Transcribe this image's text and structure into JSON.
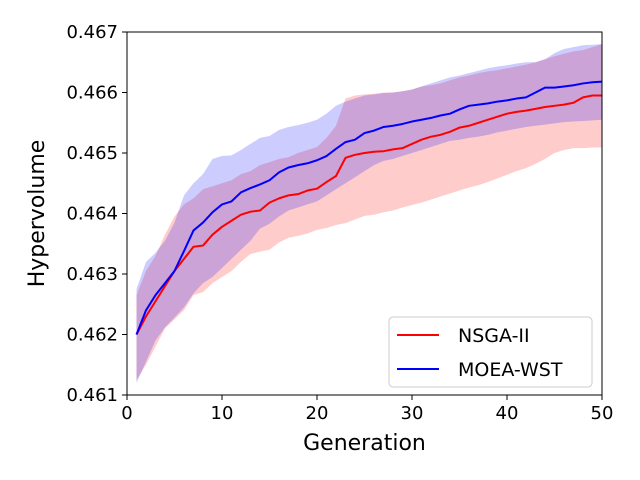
{
  "chart_data": {
    "type": "line",
    "title": "",
    "xlabel": "Generation",
    "ylabel": "Hypervolume",
    "xlim": [
      0,
      50
    ],
    "ylim": [
      0.461,
      0.467
    ],
    "xticks": [
      0,
      10,
      20,
      30,
      40,
      50
    ],
    "xtick_labels": [
      "0",
      "10",
      "20",
      "30",
      "40",
      "50"
    ],
    "yticks": [
      0.461,
      0.462,
      0.463,
      0.464,
      0.465,
      0.466,
      0.467
    ],
    "ytick_labels": [
      "0.461",
      "0.462",
      "0.463",
      "0.464",
      "0.465",
      "0.466",
      "0.467"
    ],
    "grid": false,
    "legend_position": "lower-right",
    "x": [
      1,
      2,
      3,
      4,
      5,
      6,
      7,
      8,
      9,
      10,
      11,
      12,
      13,
      14,
      15,
      16,
      17,
      18,
      19,
      20,
      21,
      22,
      23,
      24,
      25,
      26,
      27,
      28,
      29,
      30,
      31,
      32,
      33,
      34,
      35,
      36,
      37,
      38,
      39,
      40,
      41,
      42,
      43,
      44,
      45,
      46,
      47,
      48,
      49,
      50
    ],
    "series": [
      {
        "name": "NSGA-II",
        "color": "#ff0000",
        "band_color": "#ff0000",
        "mean": [
          0.462,
          0.4623,
          0.46255,
          0.4628,
          0.46305,
          0.46325,
          0.46345,
          0.46347,
          0.46365,
          0.46378,
          0.46388,
          0.46398,
          0.46403,
          0.46405,
          0.46418,
          0.46425,
          0.4643,
          0.46432,
          0.46438,
          0.46441,
          0.46452,
          0.46462,
          0.46492,
          0.46497,
          0.465,
          0.46502,
          0.46503,
          0.46506,
          0.46508,
          0.46515,
          0.46522,
          0.46527,
          0.4653,
          0.46535,
          0.46542,
          0.46545,
          0.4655,
          0.46555,
          0.4656,
          0.46565,
          0.46568,
          0.4657,
          0.46573,
          0.46576,
          0.46578,
          0.4658,
          0.46583,
          0.46592,
          0.46595,
          0.46595
        ],
        "lower": [
          0.46125,
          0.4615,
          0.4618,
          0.4621,
          0.46225,
          0.4624,
          0.46265,
          0.4627,
          0.46285,
          0.46295,
          0.46305,
          0.4632,
          0.46333,
          0.46337,
          0.4634,
          0.46352,
          0.4636,
          0.46363,
          0.46367,
          0.46373,
          0.46376,
          0.46381,
          0.46384,
          0.4639,
          0.46396,
          0.46398,
          0.46402,
          0.46405,
          0.4641,
          0.46414,
          0.46418,
          0.46423,
          0.46428,
          0.46433,
          0.46438,
          0.46443,
          0.46447,
          0.46452,
          0.46458,
          0.46464,
          0.4647,
          0.46475,
          0.46482,
          0.4649,
          0.465,
          0.46505,
          0.46508,
          0.46508,
          0.46509,
          0.46509
        ],
        "upper": [
          0.46265,
          0.46305,
          0.4633,
          0.46365,
          0.46395,
          0.46415,
          0.46425,
          0.4644,
          0.46445,
          0.4645,
          0.46455,
          0.46465,
          0.4647,
          0.4648,
          0.46485,
          0.4649,
          0.46493,
          0.465,
          0.46505,
          0.4651,
          0.46525,
          0.46545,
          0.4659,
          0.46595,
          0.46597,
          0.46598,
          0.466,
          0.466,
          0.46602,
          0.46605,
          0.4661,
          0.46612,
          0.46615,
          0.4662,
          0.46625,
          0.46628,
          0.46632,
          0.46635,
          0.46637,
          0.4664,
          0.46643,
          0.46646,
          0.4665,
          0.46655,
          0.4666,
          0.46664,
          0.46668,
          0.4667,
          0.46675,
          0.4668
        ]
      },
      {
        "name": "MOEA-WST",
        "color": "#0000ff",
        "band_color": "#0000ff",
        "mean": [
          0.462,
          0.4624,
          0.46265,
          0.46285,
          0.46305,
          0.46338,
          0.46372,
          0.46385,
          0.46402,
          0.46415,
          0.4642,
          0.46435,
          0.46442,
          0.46448,
          0.46455,
          0.46468,
          0.46476,
          0.4648,
          0.46483,
          0.46488,
          0.46495,
          0.46507,
          0.46518,
          0.46522,
          0.46533,
          0.46537,
          0.46543,
          0.46545,
          0.46548,
          0.46552,
          0.46555,
          0.46558,
          0.46562,
          0.46565,
          0.46572,
          0.46578,
          0.4658,
          0.46582,
          0.46585,
          0.46587,
          0.4659,
          0.46592,
          0.466,
          0.46608,
          0.46608,
          0.4661,
          0.46612,
          0.46615,
          0.46617,
          0.46618
        ],
        "lower": [
          0.4612,
          0.46155,
          0.4619,
          0.46212,
          0.46228,
          0.46245,
          0.46268,
          0.46285,
          0.46295,
          0.4631,
          0.46325,
          0.4634,
          0.46355,
          0.46375,
          0.46383,
          0.46395,
          0.46405,
          0.4641,
          0.46415,
          0.4642,
          0.4643,
          0.4644,
          0.4645,
          0.4646,
          0.4647,
          0.4648,
          0.46487,
          0.4649,
          0.46495,
          0.465,
          0.46505,
          0.4651,
          0.46515,
          0.4652,
          0.46522,
          0.46525,
          0.46527,
          0.4653,
          0.46534,
          0.46537,
          0.4654,
          0.46543,
          0.46545,
          0.46547,
          0.46549,
          0.46551,
          0.46552,
          0.46553,
          0.46554,
          0.46555
        ],
        "upper": [
          0.46275,
          0.4632,
          0.46335,
          0.46355,
          0.46385,
          0.4643,
          0.4645,
          0.46465,
          0.4649,
          0.46495,
          0.46496,
          0.46505,
          0.46515,
          0.46525,
          0.46528,
          0.46538,
          0.46543,
          0.46546,
          0.4655,
          0.46555,
          0.46565,
          0.46578,
          0.46585,
          0.4659,
          0.46595,
          0.46597,
          0.46599,
          0.466,
          0.46602,
          0.46605,
          0.4661,
          0.46615,
          0.4662,
          0.46625,
          0.46628,
          0.46632,
          0.46636,
          0.4664,
          0.46643,
          0.46645,
          0.46648,
          0.4665,
          0.4665,
          0.46655,
          0.46665,
          0.46672,
          0.46675,
          0.46678,
          0.46679,
          0.4668
        ]
      }
    ]
  }
}
